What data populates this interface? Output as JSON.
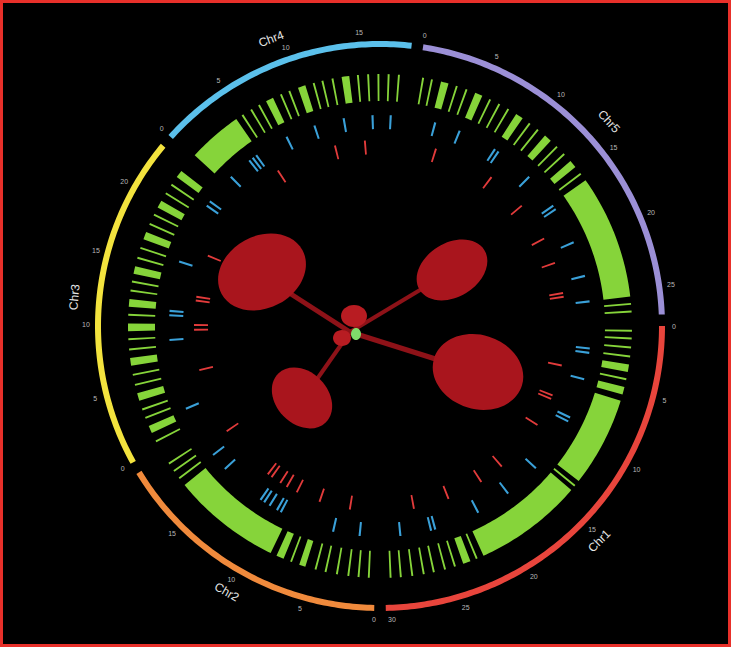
{
  "chart_data": {
    "type": "circos",
    "chromosomes": [
      {
        "name": "Chr1",
        "length": 30.4,
        "color": "#e8453c",
        "ticks": [
          0,
          5,
          10,
          15,
          20,
          25,
          30
        ]
      },
      {
        "name": "Chr2",
        "length": 19.7,
        "color": "#f08a3c",
        "ticks": [
          0,
          5,
          10,
          15
        ]
      },
      {
        "name": "Chr3",
        "length": 23.5,
        "color": "#f3e33e",
        "ticks": [
          0,
          5,
          10,
          15,
          20
        ]
      },
      {
        "name": "Chr4",
        "length": 18.6,
        "color": "#5bc0eb",
        "ticks": [
          0,
          5,
          10,
          15
        ]
      },
      {
        "name": "Chr5",
        "length": 27.0,
        "color": "#9b8fd6",
        "ticks": [
          0,
          5,
          10,
          15,
          20,
          25
        ]
      }
    ],
    "tracks": [
      {
        "color": "#86d43a",
        "intervals": {
          "Chr1": [
            [
              0.3,
              0.45
            ],
            [
              0.9,
              1.05
            ],
            [
              1.6,
              1.75
            ],
            [
              2.3,
              2.45
            ],
            [
              3.0,
              3.6
            ],
            [
              4.1,
              4.25
            ],
            [
              4.8,
              5.4
            ],
            [
              5.9,
              13.0
            ],
            [
              13.4,
              13.55
            ],
            [
              13.9,
              22.5
            ],
            [
              23.0,
              23.15
            ],
            [
              23.6,
              24.2
            ],
            [
              24.8,
              24.95
            ],
            [
              25.6,
              25.75
            ],
            [
              26.5,
              26.65
            ],
            [
              27.3,
              27.45
            ],
            [
              28.2,
              28.35
            ],
            [
              29.1,
              29.25
            ],
            [
              29.9,
              30.05
            ]
          ],
          "Chr2": [
            [
              0.4,
              0.55
            ],
            [
              1.2,
              1.35
            ],
            [
              2.0,
              2.15
            ],
            [
              2.9,
              3.05
            ],
            [
              3.8,
              3.95
            ],
            [
              4.6,
              4.75
            ],
            [
              5.5,
              6.0
            ],
            [
              6.6,
              6.75
            ],
            [
              7.3,
              7.9
            ],
            [
              8.4,
              17.0
            ],
            [
              17.6,
              17.75
            ],
            [
              18.3,
              18.45
            ],
            [
              19.0,
              19.15
            ]
          ],
          "Chr3": [
            [
              0.5,
              0.65
            ],
            [
              1.3,
              1.9
            ],
            [
              2.5,
              2.65
            ],
            [
              3.2,
              3.35
            ],
            [
              4.0,
              4.6
            ],
            [
              5.2,
              5.35
            ],
            [
              6.0,
              6.15
            ],
            [
              6.8,
              7.4
            ],
            [
              8.0,
              8.15
            ],
            [
              8.8,
              8.95
            ],
            [
              9.5,
              10.1
            ],
            [
              10.7,
              10.85
            ],
            [
              11.4,
              12.0
            ],
            [
              12.6,
              12.75
            ],
            [
              13.3,
              13.45
            ],
            [
              14.0,
              14.6
            ],
            [
              15.2,
              15.35
            ],
            [
              16.0,
              16.15
            ],
            [
              16.8,
              17.4
            ],
            [
              18.0,
              18.15
            ],
            [
              18.8,
              18.95
            ],
            [
              19.5,
              20.1
            ],
            [
              20.7,
              20.85
            ],
            [
              21.5,
              21.65
            ],
            [
              22.3,
              22.9
            ]
          ],
          "Chr4": [
            [
              0.2,
              4.5
            ],
            [
              5.0,
              5.15
            ],
            [
              5.8,
              5.95
            ],
            [
              6.5,
              6.65
            ],
            [
              7.2,
              7.8
            ],
            [
              8.4,
              8.55
            ],
            [
              9.1,
              9.25
            ],
            [
              9.9,
              10.5
            ],
            [
              11.1,
              11.25
            ],
            [
              11.8,
              11.95
            ],
            [
              12.6,
              12.75
            ],
            [
              13.4,
              14.0
            ],
            [
              14.6,
              14.75
            ],
            [
              15.4,
              15.55
            ],
            [
              16.2,
              16.35
            ],
            [
              17.0,
              17.15
            ],
            [
              17.8,
              17.95
            ]
          ],
          "Chr5": [
            [
              0.3,
              0.45
            ],
            [
              1.0,
              1.15
            ],
            [
              1.8,
              2.4
            ],
            [
              3.0,
              3.15
            ],
            [
              3.8,
              3.95
            ],
            [
              4.6,
              5.2
            ],
            [
              5.8,
              5.95
            ],
            [
              6.6,
              6.75
            ],
            [
              7.4,
              7.55
            ],
            [
              8.2,
              8.8
            ],
            [
              9.4,
              9.55
            ],
            [
              10.2,
              10.35
            ],
            [
              11.0,
              11.6
            ],
            [
              12.2,
              12.35
            ],
            [
              13.0,
              13.15
            ],
            [
              13.8,
              14.4
            ],
            [
              15.0,
              15.15
            ],
            [
              15.7,
              25.5
            ],
            [
              26.0,
              26.15
            ],
            [
              26.6,
              26.75
            ]
          ]
        }
      },
      {
        "color": "#3aa0d8",
        "positions": {
          "Chr1": [
            2.1,
            2.5,
            5.0,
            8.8,
            9.2,
            14.5,
            18.0,
            21.3,
            25.6,
            26.0,
            28.9
          ],
          "Chr2": [
            1.5,
            4.0,
            9.2,
            9.6,
            10.4,
            11.0,
            11.4,
            15.8,
            17.5
          ],
          "Chr3": [
            2.0,
            8.6,
            10.9,
            11.3,
            16.0,
            21.8,
            22.3
          ],
          "Chr4": [
            1.0,
            3.3,
            3.7,
            4.1,
            7.4,
            10.2,
            13.0,
            15.7,
            17.4
          ],
          "Chr5": [
            2.2,
            4.6,
            8.3,
            8.7,
            12.4,
            15.9,
            16.3,
            19.8,
            23.1,
            25.5
          ]
        }
      },
      {
        "color": "#e23b3b",
        "positions": {
          "Chr1": [
            4.2,
            7.5,
            7.9,
            11.0,
            16.8,
            19.5,
            23.4,
            27.2
          ],
          "Chr2": [
            2.8,
            6.1,
            8.7,
            9.9,
            10.7,
            11.8,
            12.3,
            18.6
          ],
          "Chr3": [
            5.2,
            9.5,
            10.0,
            12.6,
            13.0,
            17.5
          ],
          "Chr4": [
            5.0,
            11.6,
            14.8
          ],
          "Chr5": [
            3.0,
            9.6,
            14.0,
            18.2,
            21.0,
            24.3,
            24.7
          ]
        }
      }
    ]
  }
}
